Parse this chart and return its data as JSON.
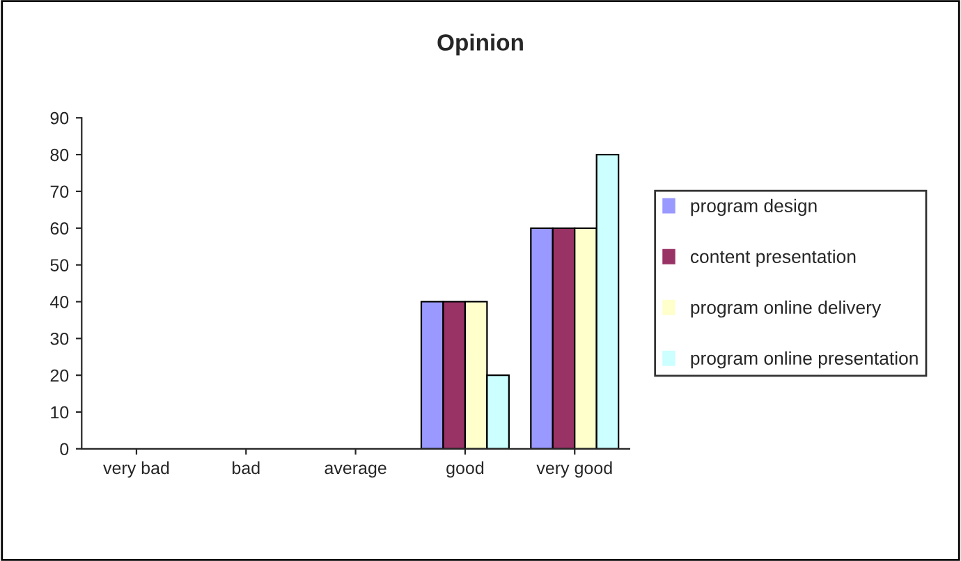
{
  "chart_data": {
    "type": "bar",
    "title": "Opinion",
    "categories": [
      "very bad",
      "bad",
      "average",
      "good",
      "very good"
    ],
    "series": [
      {
        "name": "program design",
        "color": "#9999ff",
        "values": [
          0,
          0,
          0,
          40,
          60
        ]
      },
      {
        "name": "content presentation",
        "color": "#993366",
        "values": [
          0,
          0,
          0,
          40,
          60
        ]
      },
      {
        "name": "program online delivery",
        "color": "#ffffcc",
        "values": [
          0,
          0,
          0,
          40,
          60
        ]
      },
      {
        "name": "program online presentation",
        "color": "#ccffff",
        "values": [
          0,
          0,
          0,
          20,
          80
        ]
      }
    ],
    "ylim": [
      0,
      90
    ],
    "yticks": [
      0,
      10,
      20,
      30,
      40,
      50,
      60,
      70,
      80,
      90
    ],
    "grid": false,
    "legend": "right"
  }
}
